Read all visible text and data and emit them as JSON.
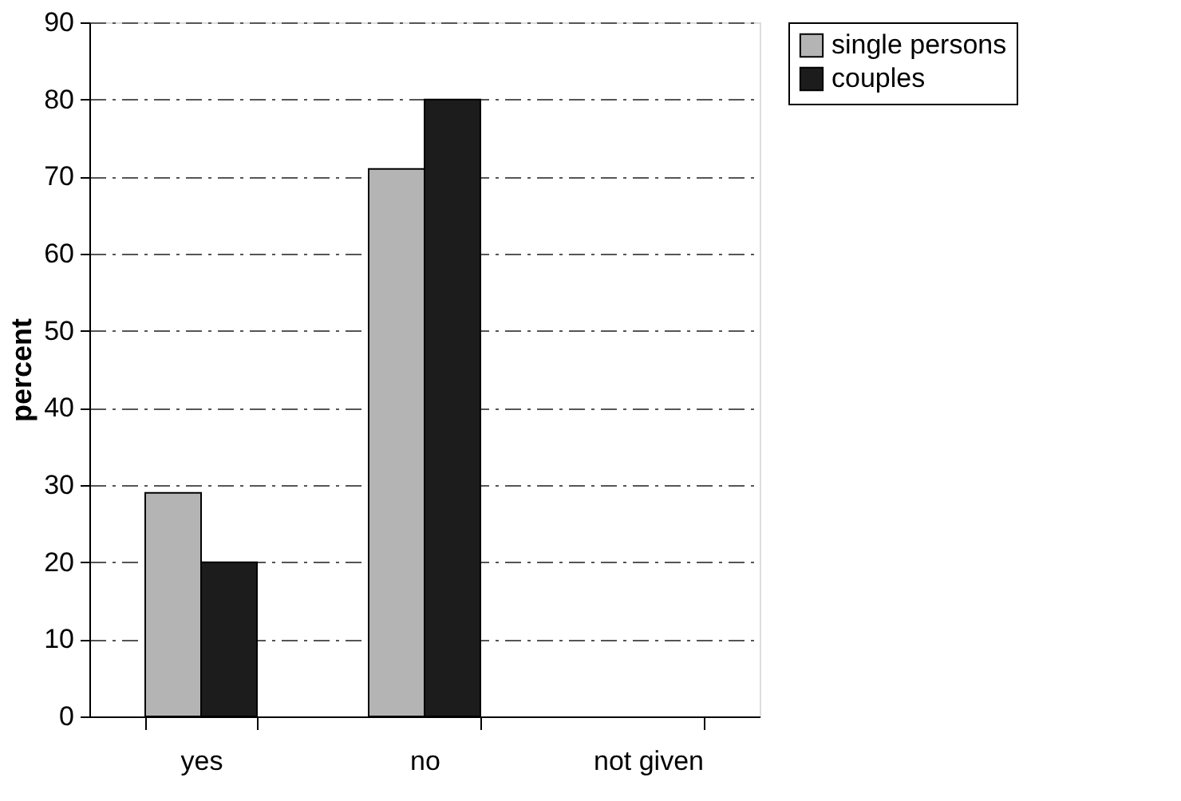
{
  "chart_data": {
    "type": "bar",
    "ylabel": "percent",
    "categories": [
      "yes",
      "no",
      "not given"
    ],
    "series": [
      {
        "name": "single persons",
        "color": "#b4b4b4",
        "values": [
          29,
          71,
          null
        ]
      },
      {
        "name": "couples",
        "color": "#1c1c1c",
        "values": [
          20,
          80,
          null
        ]
      }
    ],
    "ylim": [
      0,
      90
    ],
    "yticks": [
      0,
      10,
      20,
      30,
      40,
      50,
      60,
      70,
      80,
      90
    ],
    "grid": "y",
    "legend": "right"
  }
}
